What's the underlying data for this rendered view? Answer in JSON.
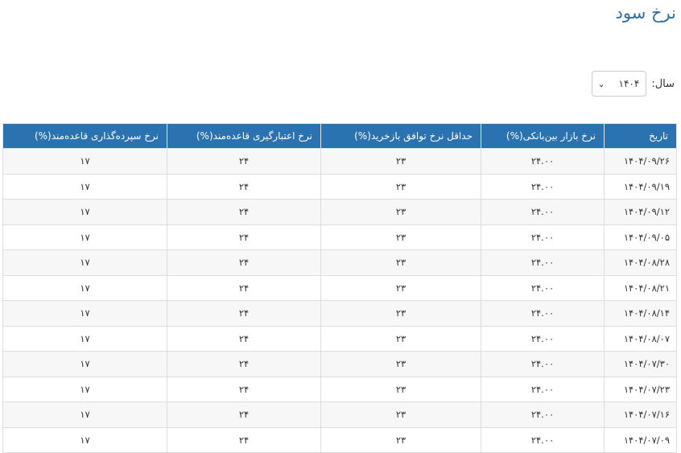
{
  "page": {
    "title": "نرخ سود"
  },
  "filter": {
    "label": "سال:",
    "selected": "۱۴۰۴"
  },
  "table": {
    "headers": [
      "تاریخ",
      "نرخ بازار بین‌بانکی(%)",
      "حداقل نرخ توافق بازخرید(%)",
      "نرخ اعتبارگیری قاعده‌مند(%)",
      "نرخ سپرده‌گذاری قاعده‌مند(%)"
    ],
    "rows": [
      [
        "۱۴۰۴/۰۹/۲۶",
        "۲۴.۰۰",
        "۲۳",
        "۲۴",
        "۱۷"
      ],
      [
        "۱۴۰۴/۰۹/۱۹",
        "۲۴.۰۰",
        "۲۳",
        "۲۴",
        "۱۷"
      ],
      [
        "۱۴۰۴/۰۹/۱۲",
        "۲۴.۰۰",
        "۲۳",
        "۲۴",
        "۱۷"
      ],
      [
        "۱۴۰۴/۰۹/۰۵",
        "۲۴.۰۰",
        "۲۳",
        "۲۴",
        "۱۷"
      ],
      [
        "۱۴۰۴/۰۸/۲۸",
        "۲۴.۰۰",
        "۲۳",
        "۲۴",
        "۱۷"
      ],
      [
        "۱۴۰۴/۰۸/۲۱",
        "۲۴.۰۰",
        "۲۳",
        "۲۴",
        "۱۷"
      ],
      [
        "۱۴۰۴/۰۸/۱۴",
        "۲۴.۰۰",
        "۲۳",
        "۲۴",
        "۱۷"
      ],
      [
        "۱۴۰۴/۰۸/۰۷",
        "۲۴.۰۰",
        "۲۳",
        "۲۴",
        "۱۷"
      ],
      [
        "۱۴۰۴/۰۷/۳۰",
        "۲۴.۰۰",
        "۲۳",
        "۲۴",
        "۱۷"
      ],
      [
        "۱۴۰۴/۰۷/۲۳",
        "۲۴.۰۰",
        "۲۳",
        "۲۴",
        "۱۷"
      ],
      [
        "۱۴۰۴/۰۷/۱۶",
        "۲۴.۰۰",
        "۲۳",
        "۲۴",
        "۱۷"
      ],
      [
        "۱۴۰۴/۰۷/۰۹",
        "۲۴.۰۰",
        "۲۳",
        "۲۴",
        "۱۷"
      ]
    ]
  },
  "colors": {
    "header_bg": "#2a72b0",
    "title": "#2a6fa8"
  }
}
